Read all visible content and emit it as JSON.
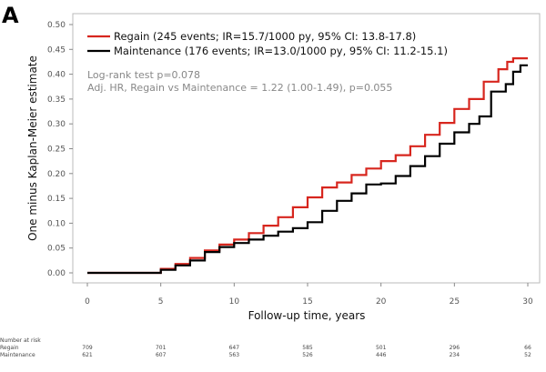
{
  "panel_label": "A",
  "chart_data": {
    "type": "line",
    "step": true,
    "xlabel": "Follow-up time, years",
    "ylabel": "One minus Kaplan-Meier estimate",
    "xlim": [
      0,
      30
    ],
    "ylim": [
      0,
      0.5
    ],
    "x_ticks": [
      0,
      5,
      10,
      15,
      20,
      25,
      30
    ],
    "x_tick_labels": [
      "0",
      "5",
      "10",
      "15",
      "20",
      "25",
      "30"
    ],
    "y_ticks": [
      0,
      0.05,
      0.1,
      0.15,
      0.2,
      0.25,
      0.3,
      0.35,
      0.4,
      0.45,
      0.5
    ],
    "y_tick_labels": [
      "0.00",
      "0.05",
      "0.10",
      "0.15",
      "0.20",
      "0.25",
      "0.30",
      "0.35",
      "0.40",
      "0.45",
      "0.50"
    ],
    "annotations": [
      "Log-rank test p=0.078",
      "Adj. HR, Regain vs Maintenance = 1.22 (1.00-1.49), p=0.055"
    ],
    "series": [
      {
        "name": "Regain",
        "legend": "Regain (245 events; IR=15.7/1000 py, 95% CI: 13.8-17.8)",
        "color": "#d7261e",
        "x": [
          0,
          4.3,
          5.0,
          6.0,
          7.0,
          8.0,
          9.0,
          10.0,
          11.0,
          12.0,
          13.0,
          14.0,
          15.0,
          16.0,
          17.0,
          18.0,
          19.0,
          20.0,
          21.0,
          22.0,
          23.0,
          24.0,
          25.0,
          26.0,
          27.0,
          28.0,
          28.6,
          29.0,
          29.5,
          30.0
        ],
        "y": [
          0,
          0,
          0.008,
          0.018,
          0.03,
          0.045,
          0.057,
          0.067,
          0.08,
          0.095,
          0.112,
          0.132,
          0.152,
          0.172,
          0.182,
          0.197,
          0.21,
          0.225,
          0.237,
          0.255,
          0.278,
          0.302,
          0.33,
          0.35,
          0.385,
          0.41,
          0.425,
          0.432,
          0.432,
          0.432
        ]
      },
      {
        "name": "Maintenance",
        "legend": "Maintenance (176 events; IR=13.0/1000 py, 95% CI: 11.2-15.1)",
        "color": "#000000",
        "x": [
          0,
          4.3,
          5.0,
          6.0,
          7.0,
          8.0,
          9.0,
          10.0,
          11.0,
          12.0,
          13.0,
          14.0,
          15.0,
          16.0,
          17.0,
          18.0,
          19.0,
          20.0,
          21.0,
          22.0,
          23.0,
          24.0,
          25.0,
          26.0,
          26.7,
          27.5,
          28.5,
          29.0,
          29.5,
          30.0
        ],
        "y": [
          0,
          0,
          0.006,
          0.015,
          0.025,
          0.042,
          0.052,
          0.06,
          0.067,
          0.075,
          0.083,
          0.09,
          0.102,
          0.125,
          0.145,
          0.16,
          0.178,
          0.18,
          0.195,
          0.215,
          0.235,
          0.26,
          0.283,
          0.3,
          0.315,
          0.365,
          0.38,
          0.405,
          0.418,
          0.418
        ]
      }
    ]
  },
  "risk_table": {
    "title": "Number at risk",
    "x": [
      0,
      5,
      10,
      15,
      20,
      25,
      30
    ],
    "rows": [
      {
        "label": "Regain",
        "values": [
          "709",
          "701",
          "647",
          "585",
          "501",
          "296",
          "66"
        ]
      },
      {
        "label": "Maintenance",
        "values": [
          "621",
          "607",
          "563",
          "526",
          "446",
          "234",
          "52"
        ]
      }
    ]
  }
}
